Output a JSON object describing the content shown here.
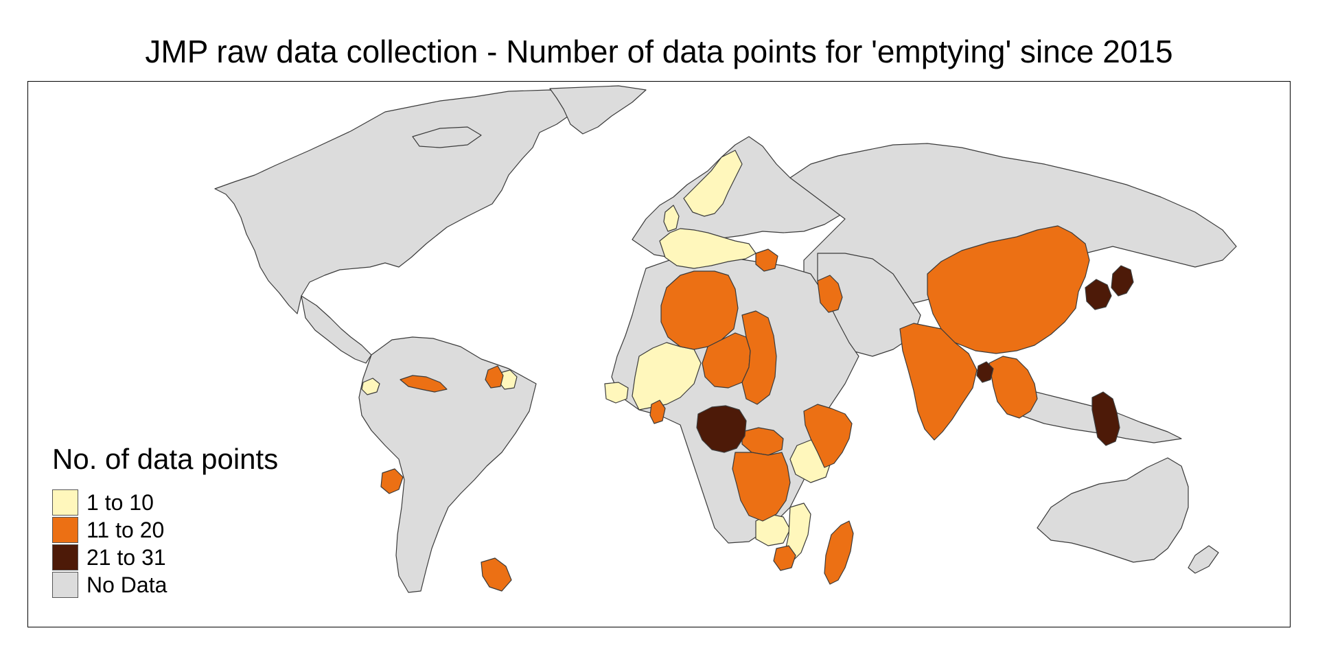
{
  "title": "JMP raw data collection - Number of data points for 'emptying' since 2015",
  "legend": {
    "title": "No. of data points",
    "items": [
      {
        "label": "1 to 10",
        "color": "#FFF7BC"
      },
      {
        "label": "11 to 20",
        "color": "#EC7014"
      },
      {
        "label": "21 to 31",
        "color": "#4D1A08"
      },
      {
        "label": "No Data",
        "color": "#DCDCDC"
      }
    ]
  },
  "colors": {
    "low": "#FFF7BC",
    "mid": "#EC7014",
    "high": "#4D1A08",
    "nodata": "#DCDCDC",
    "border": "#3a3a3a",
    "background": "#FFFFFF"
  },
  "map_data": {
    "bins": [
      "1 to 10",
      "11 to 20",
      "21 to 31",
      "No Data"
    ],
    "regions": [
      {
        "name": "Mali",
        "bin": "1 to 10"
      },
      {
        "name": "Guatemala / Honduras",
        "bin": "1 to 10"
      },
      {
        "name": "Suriname / French Guiana",
        "bin": "1 to 10"
      },
      {
        "name": "Uganda / Kenya",
        "bin": "1 to 10"
      },
      {
        "name": "Zambia",
        "bin": "1 to 10"
      },
      {
        "name": "Mozambique",
        "bin": "1 to 10"
      },
      {
        "name": "Scandinavia",
        "bin": "1 to 10"
      },
      {
        "name": "Western / Central Europe",
        "bin": "1 to 10"
      },
      {
        "name": "Burkina Faso / Senegal",
        "bin": "1 to 10"
      },
      {
        "name": "Algeria",
        "bin": "11 to 20"
      },
      {
        "name": "Niger",
        "bin": "11 to 20"
      },
      {
        "name": "Chad",
        "bin": "11 to 20"
      },
      {
        "name": "Central African Republic",
        "bin": "11 to 20"
      },
      {
        "name": "DR Congo",
        "bin": "11 to 20"
      },
      {
        "name": "Ethiopia / Somalia",
        "bin": "11 to 20"
      },
      {
        "name": "Madagascar",
        "bin": "11 to 20"
      },
      {
        "name": "Zimbabwe",
        "bin": "11 to 20"
      },
      {
        "name": "Ghana",
        "bin": "11 to 20"
      },
      {
        "name": "China",
        "bin": "11 to 20"
      },
      {
        "name": "India",
        "bin": "11 to 20"
      },
      {
        "name": "Southeast Asia",
        "bin": "11 to 20"
      },
      {
        "name": "Iraq",
        "bin": "11 to 20"
      },
      {
        "name": "Cuba",
        "bin": "11 to 20"
      },
      {
        "name": "Ecuador",
        "bin": "11 to 20"
      },
      {
        "name": "Paraguay",
        "bin": "11 to 20"
      },
      {
        "name": "Belarus",
        "bin": "11 to 20"
      },
      {
        "name": "Guyana",
        "bin": "11 to 20"
      },
      {
        "name": "Nigeria",
        "bin": "21 to 31"
      },
      {
        "name": "Bangladesh",
        "bin": "21 to 31"
      },
      {
        "name": "Japan / Korea",
        "bin": "21 to 31"
      },
      {
        "name": "Philippines",
        "bin": "21 to 31"
      }
    ]
  }
}
